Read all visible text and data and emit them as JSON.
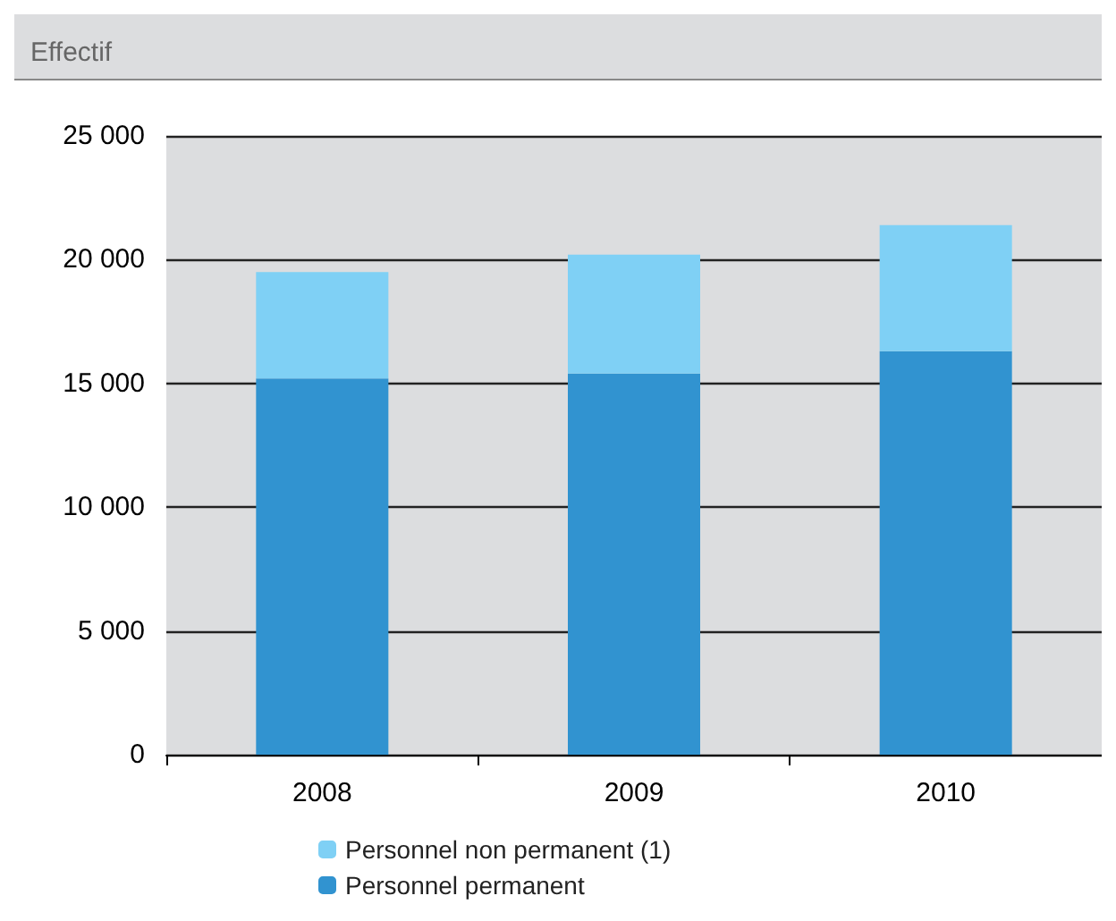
{
  "chart_data": {
    "type": "bar",
    "ylabel": "Effectif",
    "categories": [
      "2008",
      "2009",
      "2010"
    ],
    "stacked": true,
    "series": [
      {
        "name": "Personnel permanent",
        "color": "#3193d0",
        "values": [
          15200,
          15400,
          16300
        ]
      },
      {
        "name": "Personnel non permanent (1)",
        "color": "#7fd0f5",
        "values": [
          4300,
          4800,
          5100
        ]
      }
    ],
    "ylim": [
      0,
      25000
    ],
    "yticks": [
      0,
      {
        "value": 5000,
        "label": "5 000"
      },
      {
        "value": 10000,
        "label": "10 000"
      },
      {
        "value": 15000,
        "label": "15 000"
      },
      {
        "value": 20000,
        "label": "20 000"
      },
      {
        "value": 25000,
        "label": "25 000"
      }
    ],
    "grid": "y",
    "legend": "bottom"
  }
}
